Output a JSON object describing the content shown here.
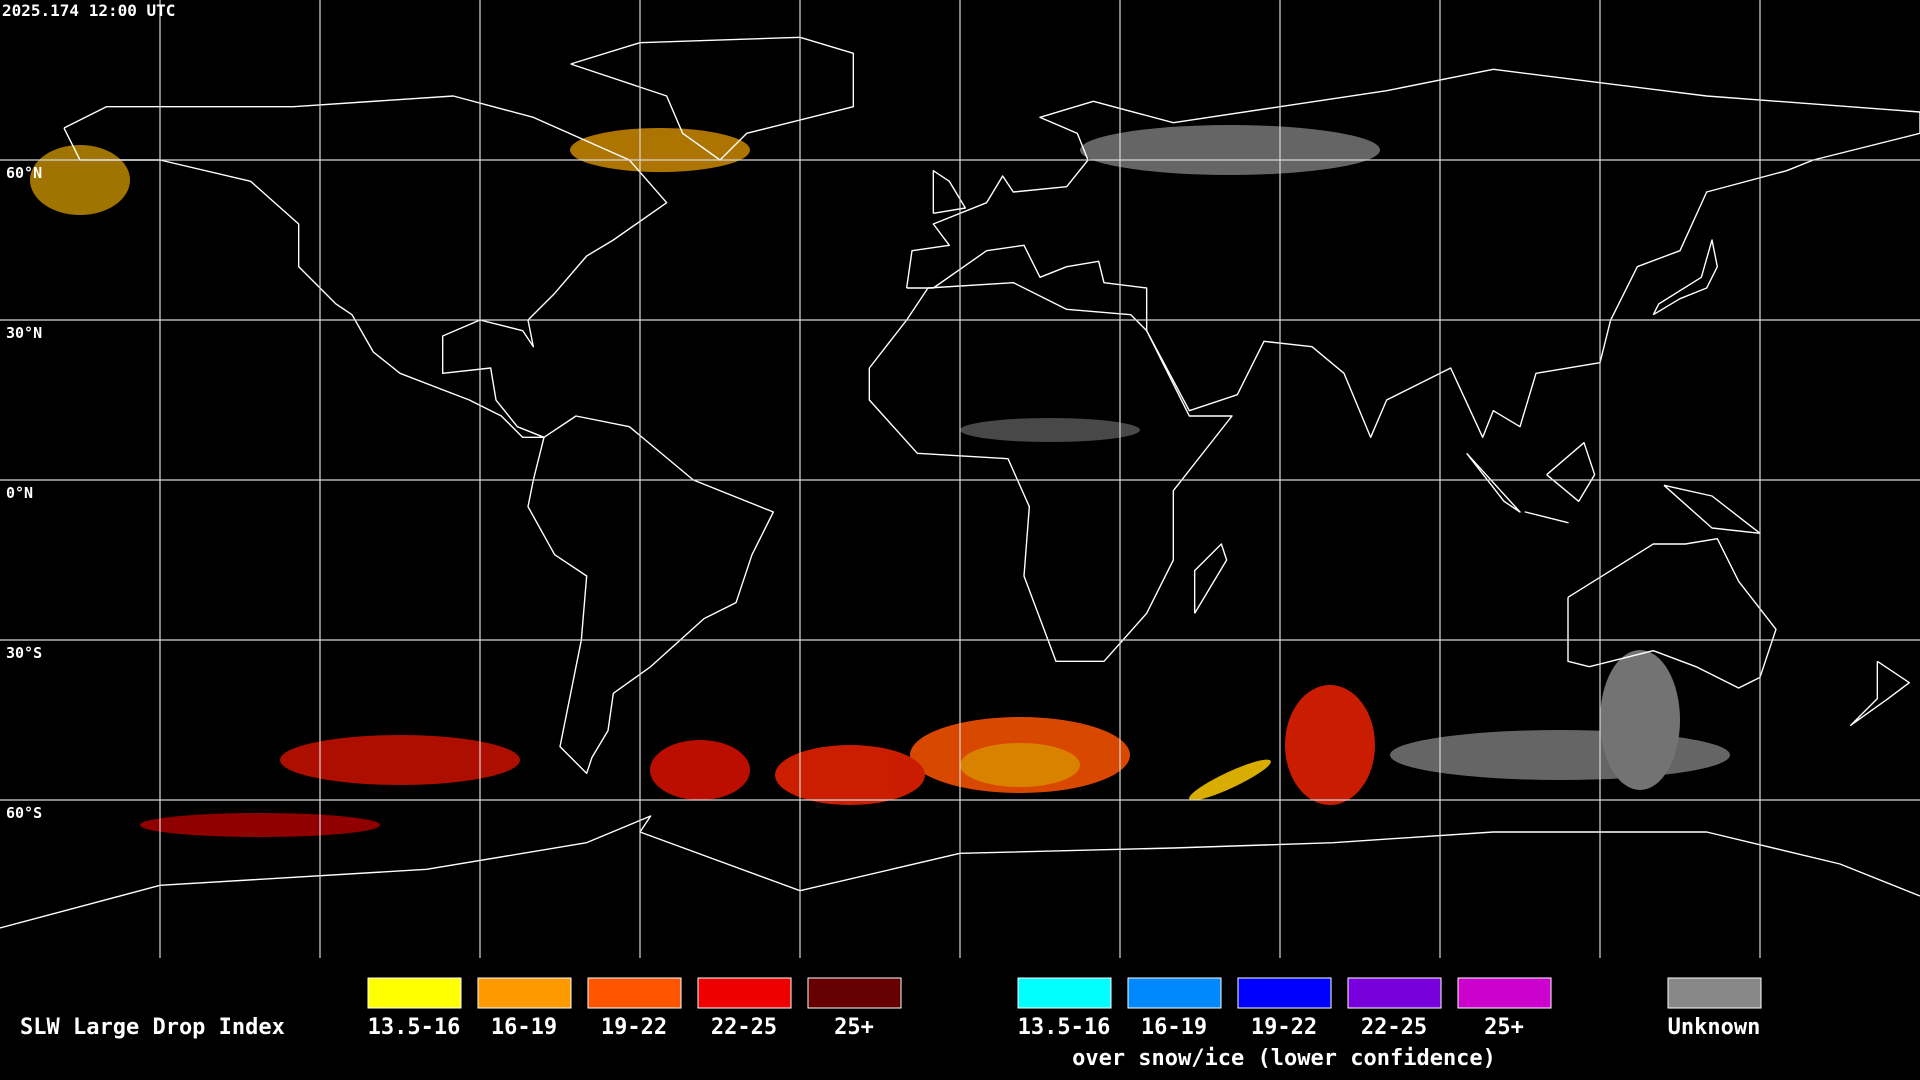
{
  "header": {
    "timestamp": "2025.174 12:00 UTC"
  },
  "latitude_labels": [
    "60°N",
    "30°N",
    "0°N",
    "30°S",
    "60°S"
  ],
  "legend": {
    "title": "SLW Large Drop Index",
    "groups": [
      {
        "items": [
          {
            "label": "13.5-16",
            "color": "#ffff00"
          },
          {
            "label": "16-19",
            "color": "#ff9900"
          },
          {
            "label": "19-22",
            "color": "#ff5500"
          },
          {
            "label": "22-25",
            "color": "#ee0000"
          },
          {
            "label": "25+",
            "color": "#660000"
          }
        ]
      },
      {
        "items": [
          {
            "label": "13.5-16",
            "color": "#00ffff"
          },
          {
            "label": "16-19",
            "color": "#0088ff"
          },
          {
            "label": "19-22",
            "color": "#0000ff"
          },
          {
            "label": "22-25",
            "color": "#7700dd"
          },
          {
            "label": "25+",
            "color": "#cc00cc"
          }
        ],
        "caption": "over snow/ice (lower confidence)"
      },
      {
        "items": [
          {
            "label": "Unknown",
            "color": "#888888"
          }
        ]
      }
    ]
  }
}
